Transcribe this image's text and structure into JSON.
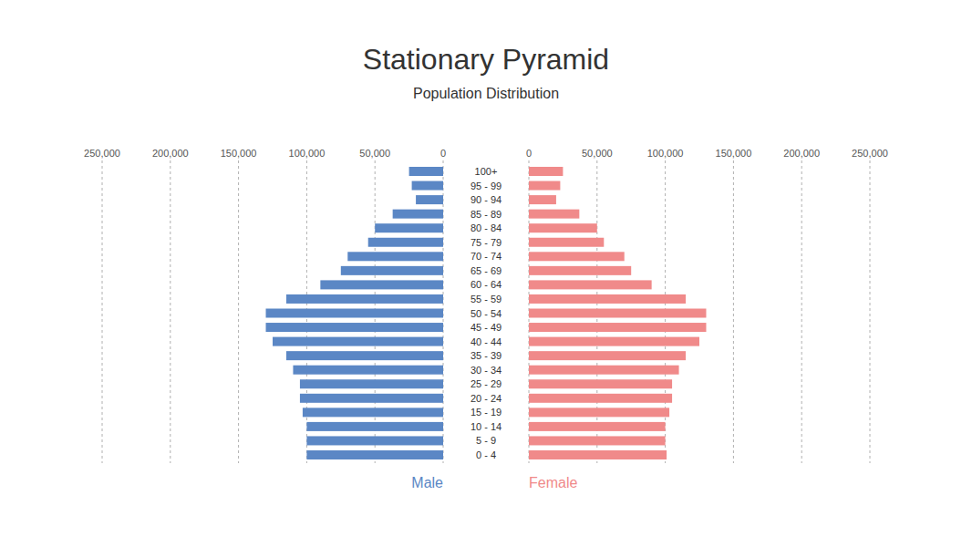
{
  "chart_data": {
    "type": "pyramid",
    "orientation": "horizontal",
    "title": "Stationary Pyramid",
    "subtitle": "Population Distribution",
    "categories": [
      "0 - 4",
      "5 - 9",
      "10 - 14",
      "15 - 19",
      "20 - 24",
      "25 - 29",
      "30 - 34",
      "35 - 39",
      "40 - 44",
      "45 - 49",
      "50 - 54",
      "55 - 59",
      "60 - 64",
      "65 - 69",
      "70 - 74",
      "75 - 79",
      "80 - 84",
      "85 - 89",
      "90 - 94",
      "95 - 99",
      "100+"
    ],
    "series": [
      {
        "name": "Male",
        "color": "#5b87c5",
        "values": [
          100000,
          100000,
          100000,
          103000,
          105000,
          105000,
          110000,
          115000,
          125000,
          130000,
          130000,
          115000,
          90000,
          75000,
          70000,
          55000,
          50000,
          37000,
          20000,
          23000,
          25000
        ]
      },
      {
        "name": "Female",
        "color": "#f08a8a",
        "values": [
          101000,
          100000,
          100000,
          103000,
          105000,
          105000,
          110000,
          115000,
          125000,
          130000,
          130000,
          115000,
          90000,
          75000,
          70000,
          55000,
          50000,
          37000,
          20000,
          23000,
          25000
        ]
      }
    ],
    "xlim": [
      0,
      250000
    ],
    "xticks": [
      0,
      {
        "value": 50000,
        "label": "50,000"
      },
      {
        "value": 100000,
        "label": "100,000"
      },
      {
        "value": 150000,
        "label": "150,000"
      },
      {
        "value": 200000,
        "label": "200,000"
      },
      {
        "value": 250000,
        "label": "250,000"
      }
    ],
    "grid": true,
    "legend": "bottom"
  }
}
